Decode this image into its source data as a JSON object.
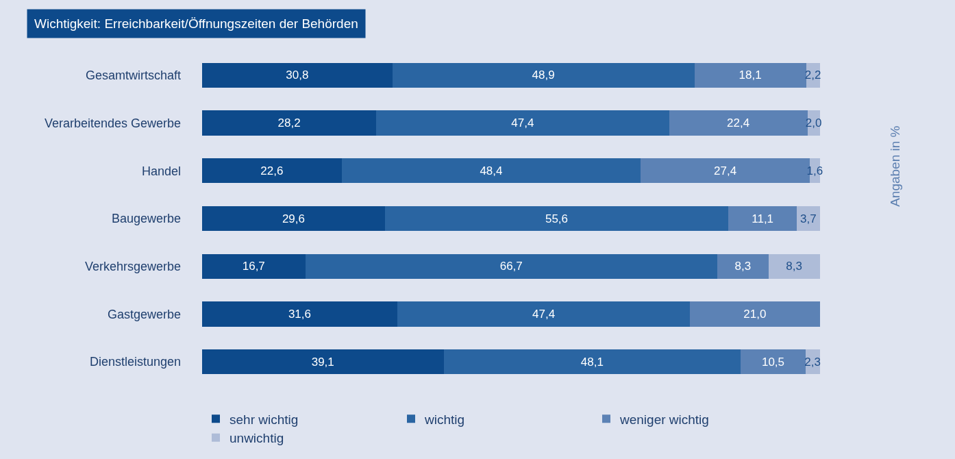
{
  "chart_data": {
    "type": "bar",
    "orientation": "horizontal",
    "stacked": true,
    "title": "Wichtigkeit: Erreichbarkeit/Öffnungszeiten der Behörden",
    "annotations": [
      "Angaben in %"
    ],
    "categories": [
      "Gesamtwirtschaft",
      "Verarbeitendes Gewerbe",
      "Handel",
      "Baugewerbe",
      "Verkehrsgewerbe",
      "Gastgewerbe",
      "Dienstleistungen"
    ],
    "series": [
      {
        "name": "sehr wichtig",
        "color": "#0d4a8b",
        "values": [
          30.8,
          28.2,
          22.6,
          29.6,
          16.7,
          31.6,
          39.1
        ],
        "value_labels": [
          "30,8",
          "28,2",
          "22,6",
          "29,6",
          "16,7",
          "31,6",
          "39,1"
        ]
      },
      {
        "name": "wichtig",
        "color": "#2a65a2",
        "values": [
          48.9,
          47.4,
          48.4,
          55.6,
          66.7,
          47.4,
          48.1
        ],
        "value_labels": [
          "48,9",
          "47,4",
          "48,4",
          "55,6",
          "66,7",
          "47,4",
          "48,1"
        ]
      },
      {
        "name": "weniger wichtig",
        "color": "#5c82b5",
        "values": [
          18.1,
          22.4,
          27.4,
          11.1,
          8.3,
          21.0,
          10.5
        ],
        "value_labels": [
          "18,1",
          "22,4",
          "27,4",
          "11,1",
          "8,3",
          "21,0",
          "10,5"
        ]
      },
      {
        "name": "unwichtig",
        "color": "#aebcd8",
        "values": [
          2.2,
          2.0,
          1.6,
          3.7,
          8.3,
          null,
          2.3
        ],
        "value_labels": [
          "2,2",
          "2,0",
          "1,6",
          "3,7",
          "8,3",
          null,
          "2,3"
        ]
      }
    ],
    "legend": "bottom",
    "grid": false
  }
}
